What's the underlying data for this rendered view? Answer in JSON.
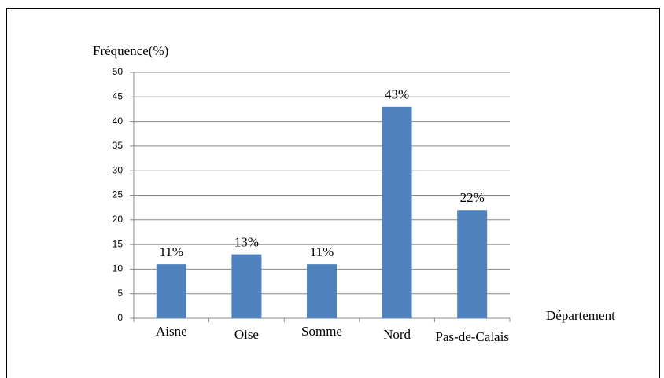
{
  "chart_data": {
    "type": "bar",
    "ylabel": "Fréquence(%)",
    "xlabel": "Département",
    "categories": [
      "Aisne",
      "Oise",
      "Somme",
      "Nord",
      "Pas-de-Calais"
    ],
    "values": [
      11,
      13,
      11,
      43,
      22
    ],
    "value_labels": [
      "11%",
      "13%",
      "11%",
      "43%",
      "22%"
    ],
    "color": "#4f81bd",
    "ylim": [
      0,
      50
    ],
    "yticks": [
      0,
      5,
      10,
      15,
      20,
      25,
      30,
      35,
      40,
      45,
      50
    ],
    "grid": true
  }
}
